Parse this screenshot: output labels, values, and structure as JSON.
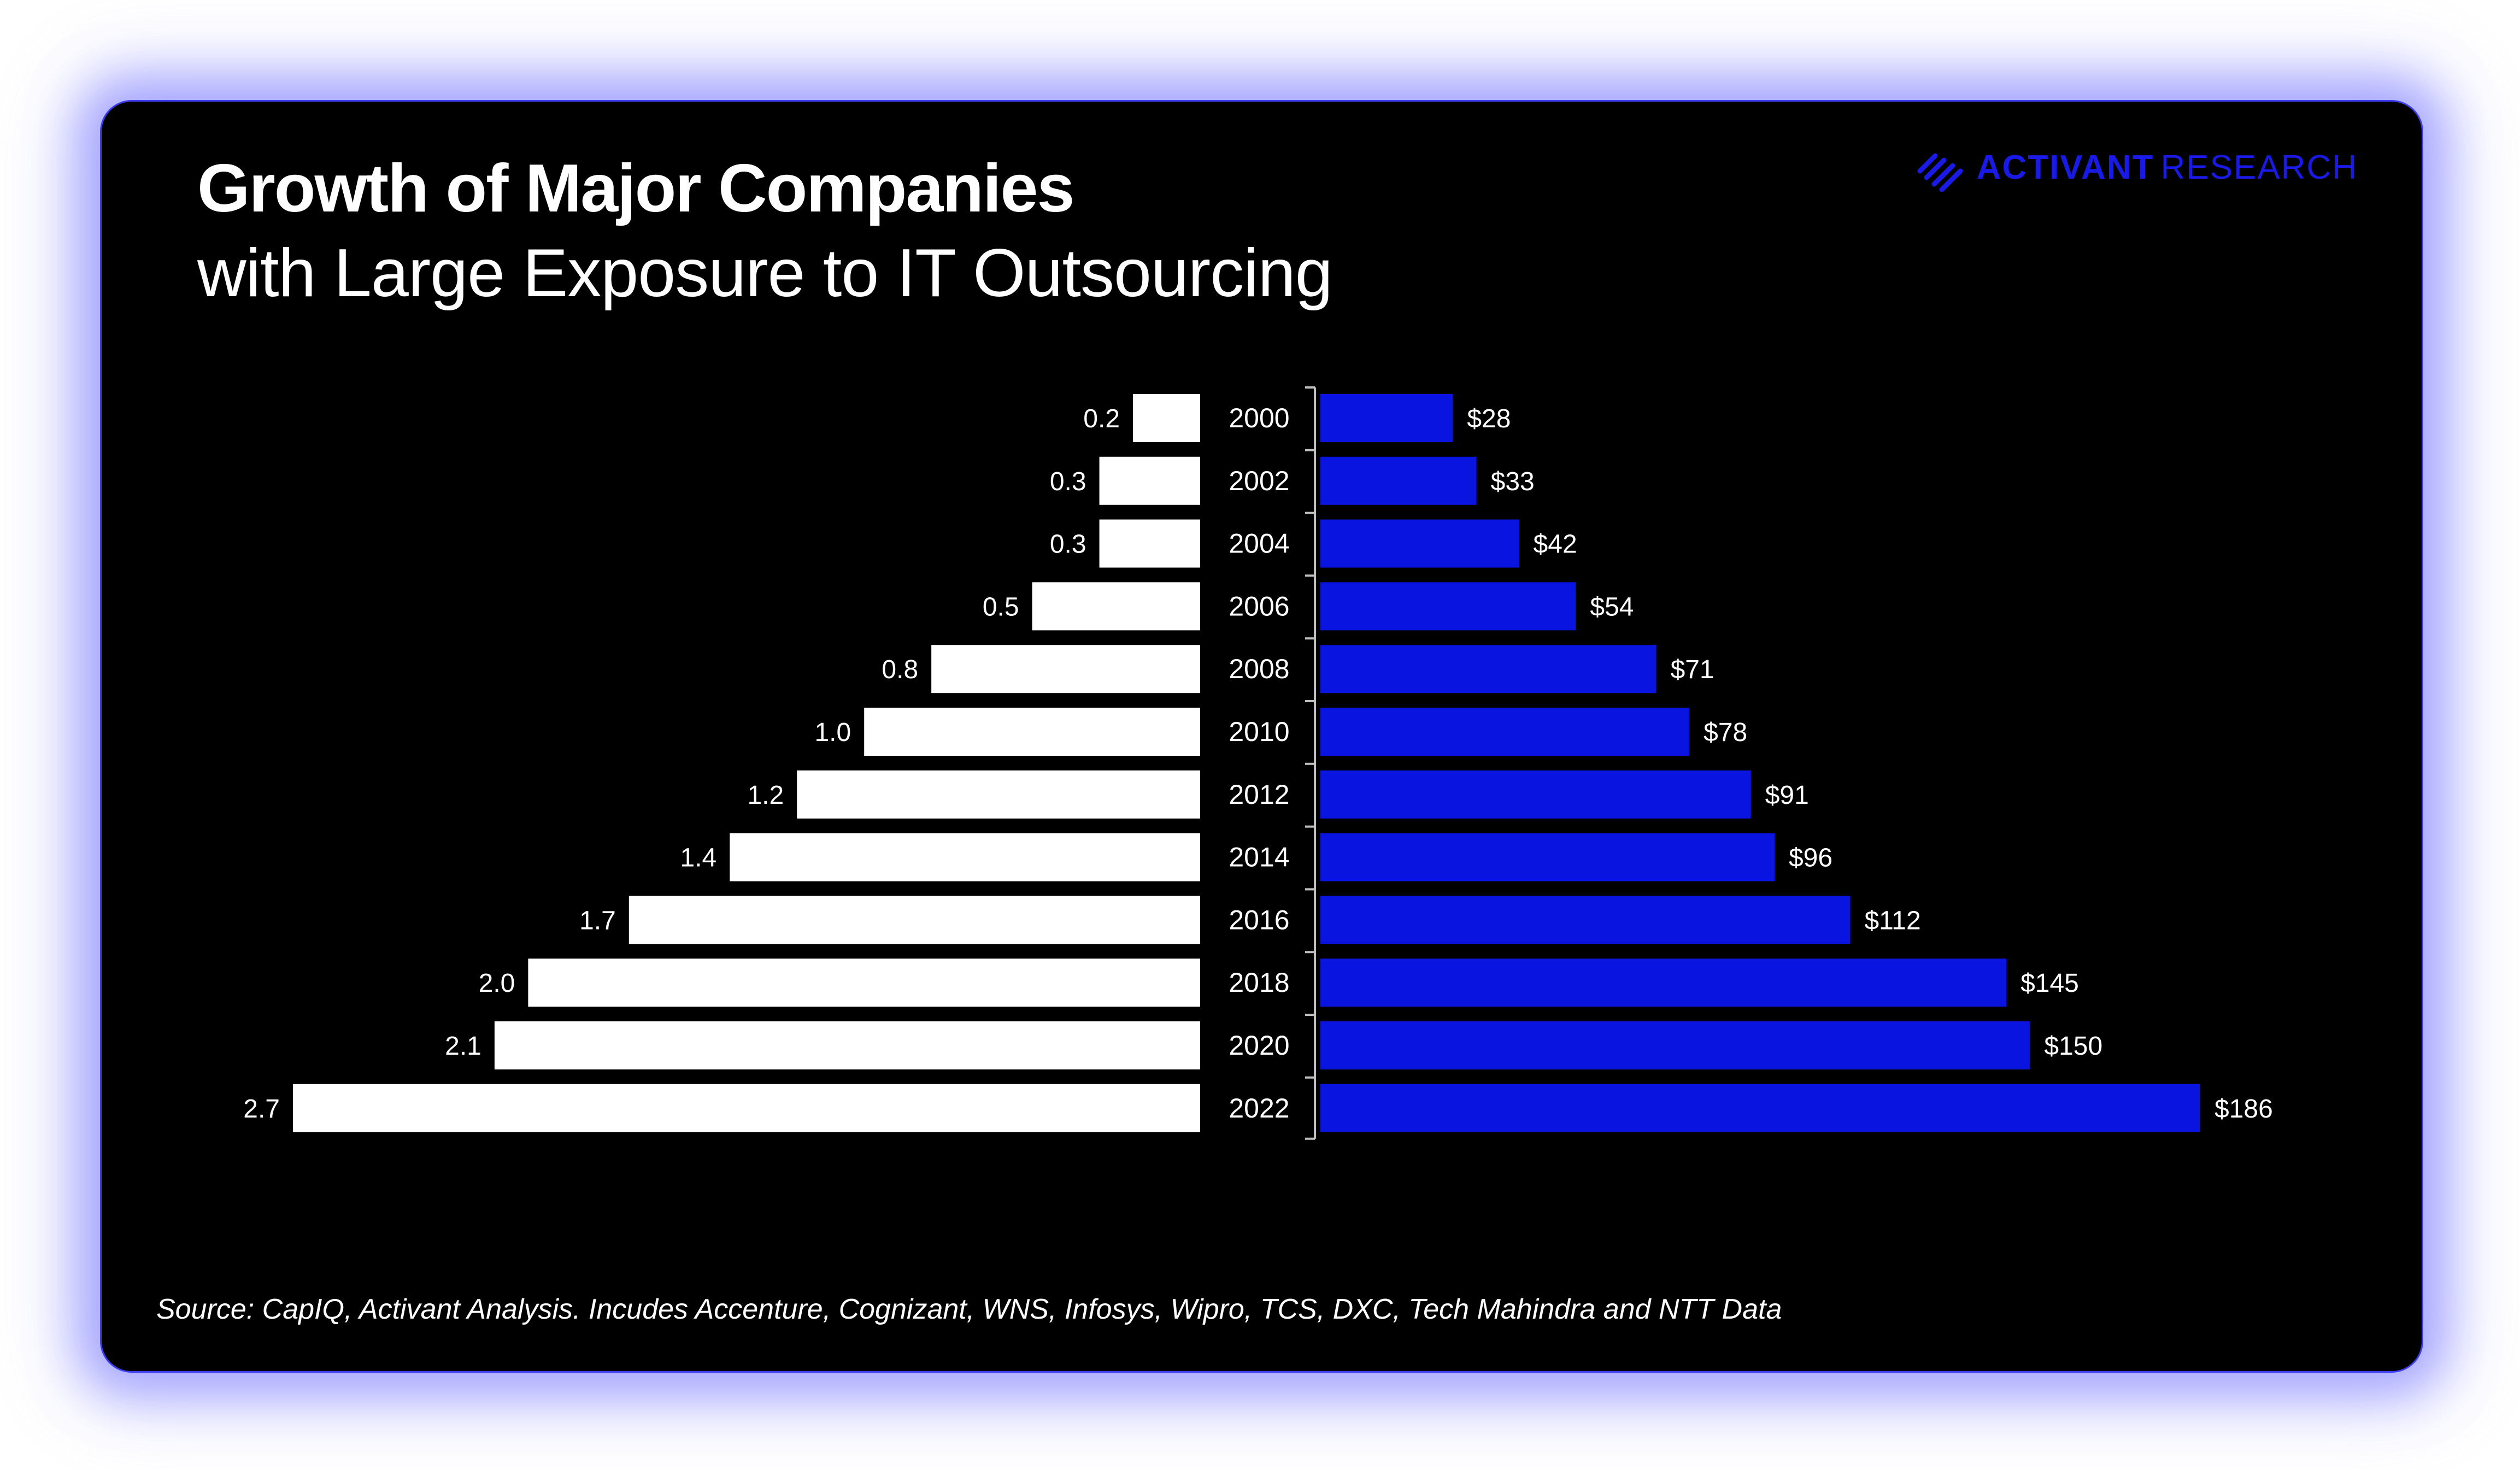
{
  "header": {
    "title": "Growth of Major Companies",
    "subtitle": "with Large Exposure to IT Outsourcing"
  },
  "logo": {
    "icon": "activant-logo-icon",
    "name_strong": "ACTIVANT",
    "name_light": "RESEARCH"
  },
  "colors": {
    "background": "#000000",
    "left_bar": "#ffffff",
    "right_bar": "#0a14e0",
    "text": "#ffffff",
    "accent": "#1a1ae6"
  },
  "chart_data": {
    "type": "bar",
    "orientation": "horizontal-butterfly",
    "categories": [
      "2000",
      "2002",
      "2004",
      "2006",
      "2008",
      "2010",
      "2012",
      "2014",
      "2016",
      "2018",
      "2020",
      "2022"
    ],
    "series": [
      {
        "name": "left",
        "values": [
          0.2,
          0.3,
          0.3,
          0.5,
          0.8,
          1.0,
          1.2,
          1.4,
          1.7,
          2.0,
          2.1,
          2.7
        ],
        "labels": [
          "0.2",
          "0.3",
          "0.3",
          "0.5",
          "0.8",
          "1.0",
          "1.2",
          "1.4",
          "1.7",
          "2.0",
          "2.1",
          "2.7"
        ]
      },
      {
        "name": "right",
        "values": [
          28,
          33,
          42,
          54,
          71,
          78,
          91,
          96,
          112,
          145,
          150,
          186
        ],
        "labels": [
          "$28",
          "$33",
          "$42",
          "$54",
          "$71",
          "$78",
          "$91",
          "$96",
          "$112",
          "$145",
          "$150",
          "$186"
        ]
      }
    ],
    "title": "Growth of Major Companies with Large Exposure to IT Outsourcing",
    "xlabel": "",
    "ylabel": ""
  },
  "footer": {
    "source": "Source: CapIQ, Activant Analysis. Incudes Accenture, Cognizant, WNS, Infosys, Wipro, TCS, DXC, Tech Mahindra and NTT Data"
  }
}
